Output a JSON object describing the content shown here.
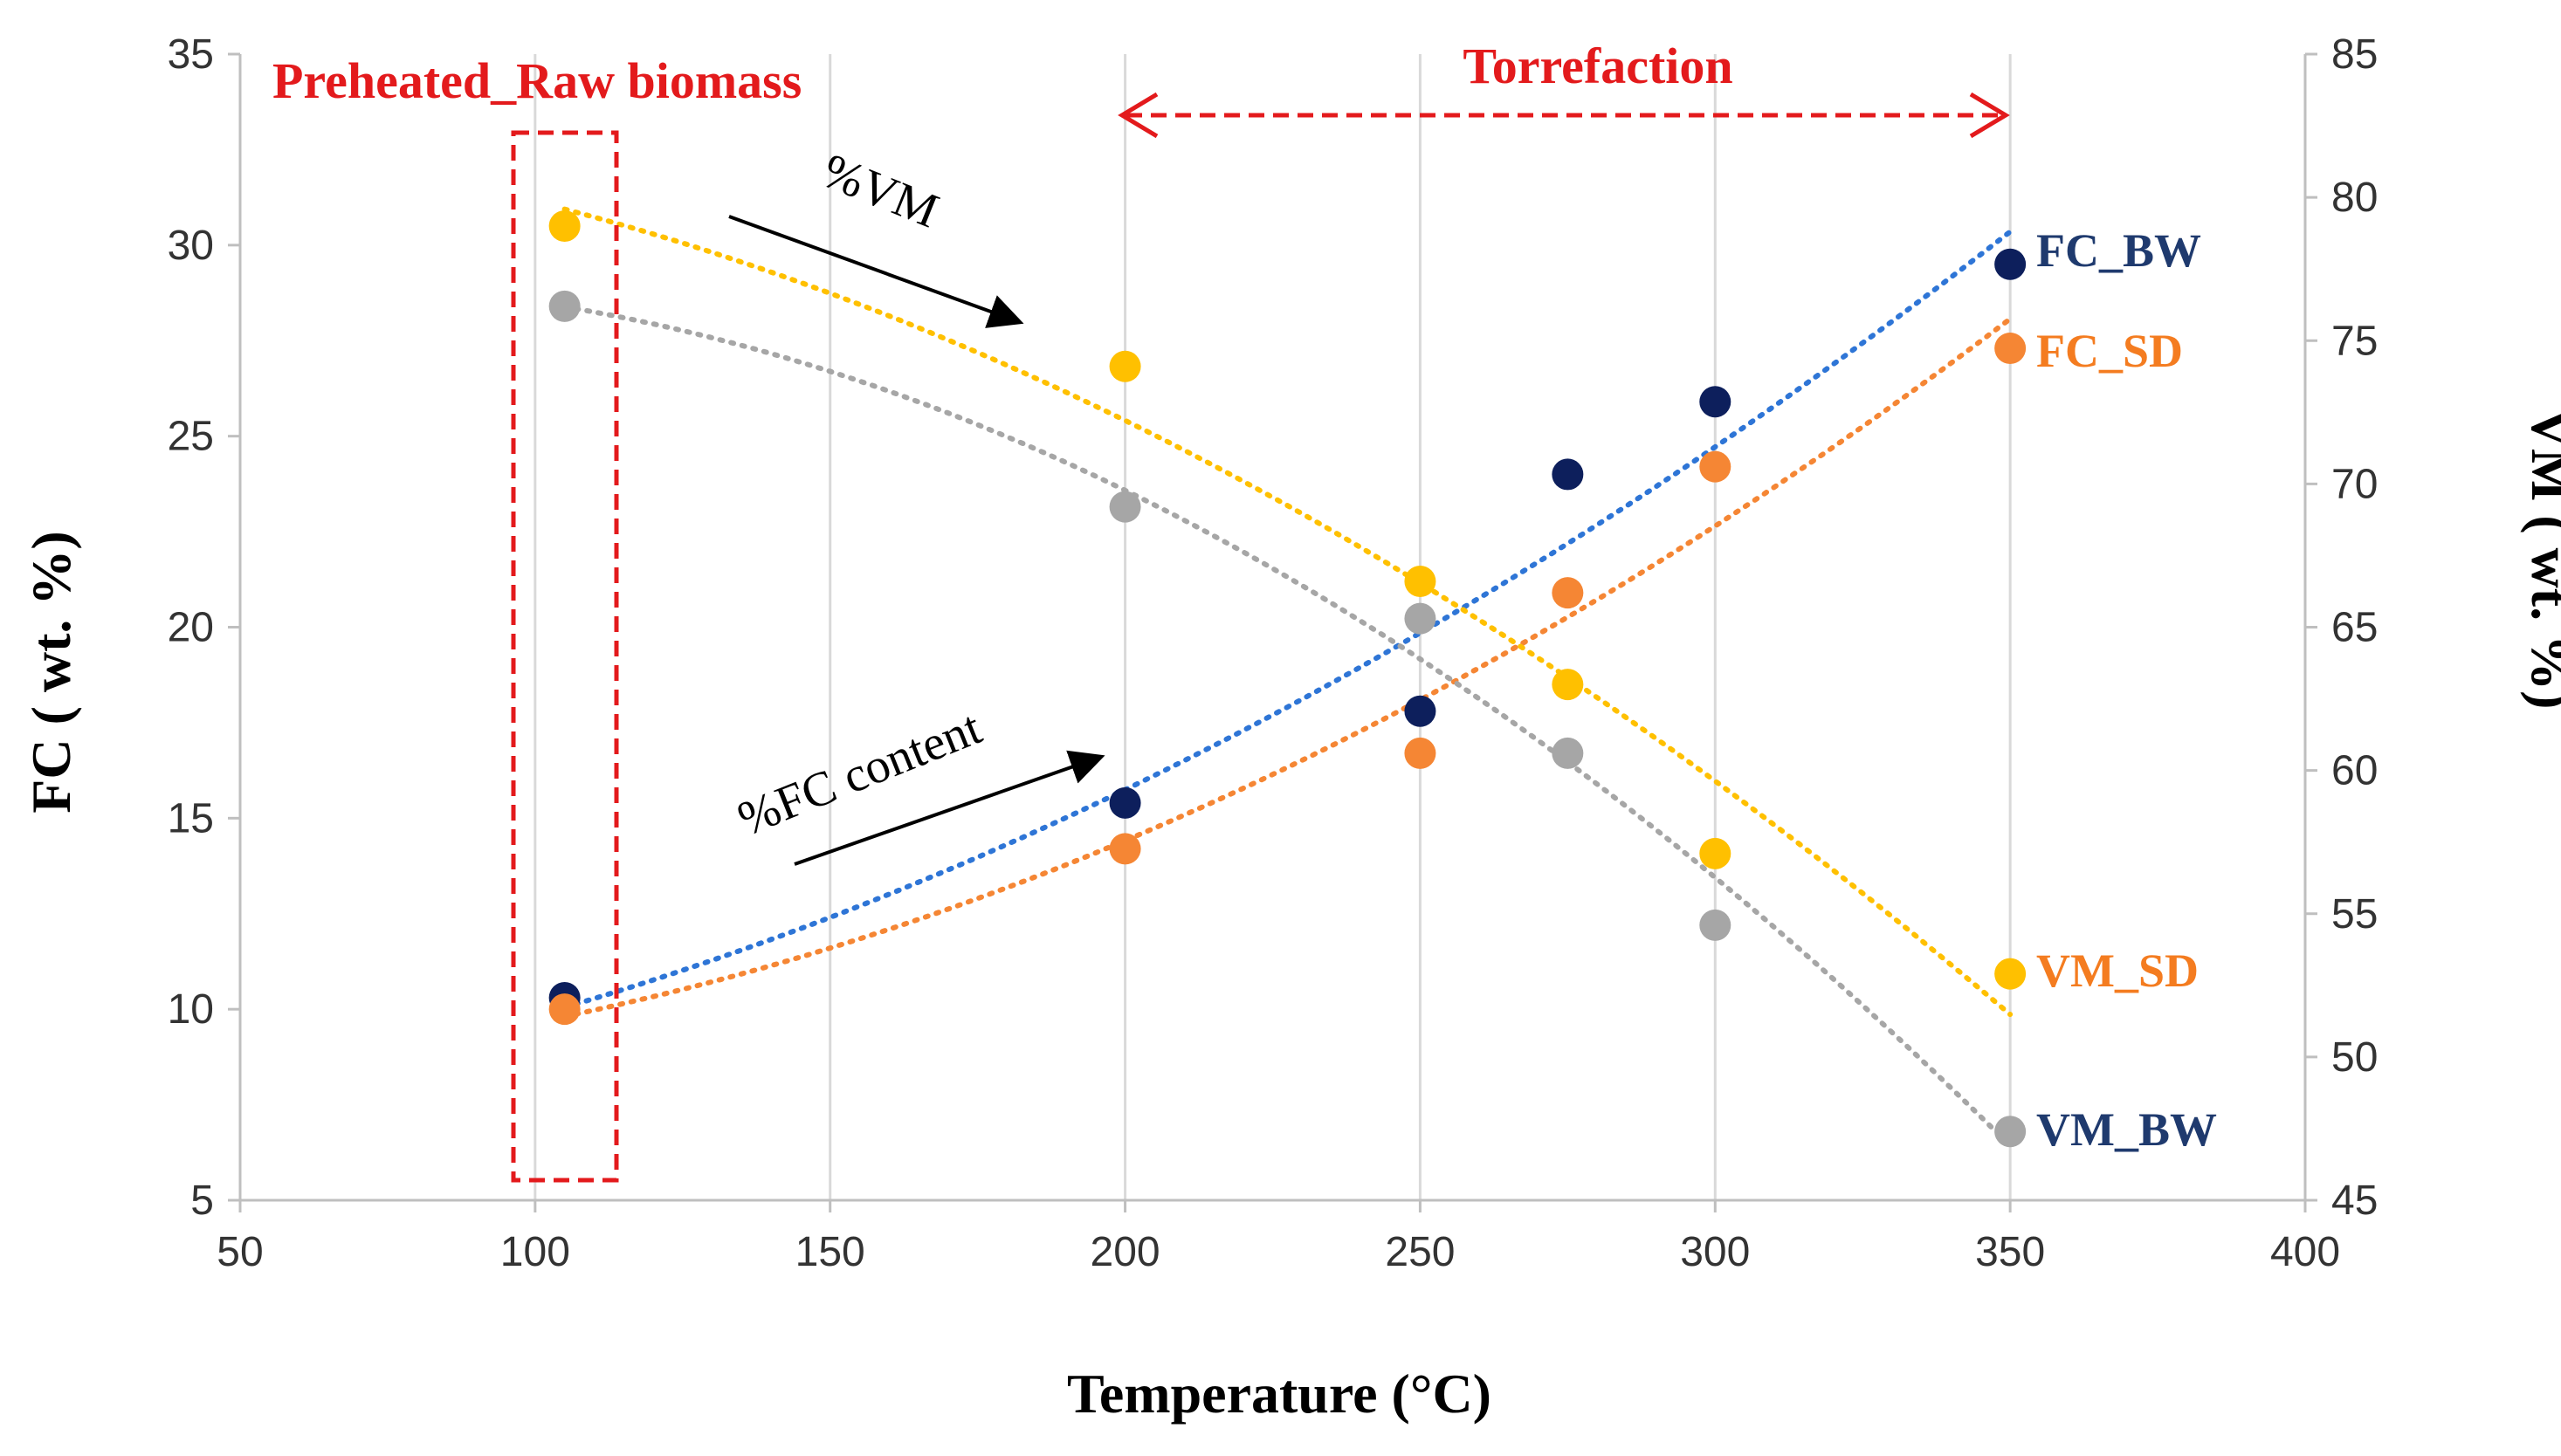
{
  "chart_data": {
    "type": "scatter",
    "xlabel": "Temperature (°C)",
    "ylabel": "FC ( wt. %)",
    "y2label": "VM ( wt. %)",
    "xlim": [
      50,
      400
    ],
    "ylim": [
      5,
      35
    ],
    "y2lim": [
      45,
      85
    ],
    "xticks": [
      50,
      100,
      150,
      200,
      250,
      300,
      350,
      400
    ],
    "yticks": [
      5,
      10,
      15,
      20,
      25,
      30,
      35
    ],
    "y2ticks": [
      45,
      50,
      55,
      60,
      65,
      70,
      75,
      80,
      85
    ],
    "grid": "vertical",
    "series": [
      {
        "name": "FC_BW",
        "axis": "left",
        "color": "#0d1f5c",
        "trend_color": "#2e75d6",
        "x": [
          105,
          200,
          250,
          275,
          300,
          350
        ],
        "y": [
          10.3,
          15.4,
          17.8,
          24.0,
          25.9,
          29.5
        ]
      },
      {
        "name": "FC_SD",
        "axis": "left",
        "color": "#f58634",
        "trend_color": "#f58634",
        "x": [
          105,
          200,
          250,
          275,
          300,
          350
        ],
        "y": [
          10.0,
          14.2,
          16.7,
          20.9,
          24.2,
          27.3
        ]
      },
      {
        "name": "VM_SD",
        "axis": "right",
        "color": "#ffc000",
        "trend_color": "#ffc000",
        "x": [
          105,
          200,
          250,
          275,
          300,
          350
        ],
        "y": [
          79.0,
          74.1,
          66.6,
          63.0,
          57.1,
          52.9
        ]
      },
      {
        "name": "VM_BW",
        "axis": "right",
        "color": "#a6a6a6",
        "trend_color": "#a6a6a6",
        "x": [
          105,
          200,
          250,
          275,
          300,
          350
        ],
        "y": [
          76.2,
          69.2,
          65.3,
          60.6,
          54.6,
          47.4
        ]
      }
    ],
    "annotations": {
      "preheated": "Preheated_Raw biomass",
      "torrefaction": "Torrefaction",
      "vm_arrow": "%VM",
      "fc_arrow": "%FC content"
    }
  }
}
